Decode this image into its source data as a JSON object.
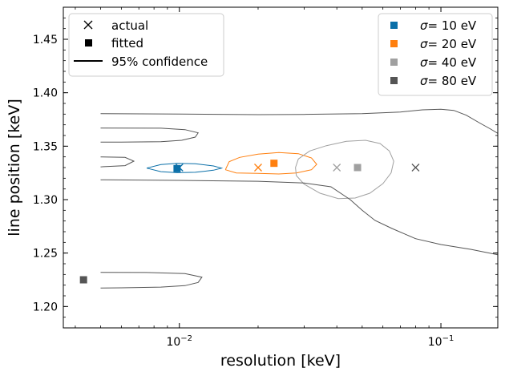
{
  "chart_data": {
    "type": "scatter",
    "xscale": "log",
    "xlim": [
      0.0036,
      0.165
    ],
    "ylim": [
      1.18,
      1.48
    ],
    "xlabel": "resolution [keV]",
    "ylabel": "line position [keV]",
    "x_ticks": [
      {
        "value": 0.01,
        "base": "10",
        "exp": "−2"
      },
      {
        "value": 0.1,
        "base": "10",
        "exp": "−1"
      }
    ],
    "y_ticks": [
      "1.20",
      "1.25",
      "1.30",
      "1.35",
      "1.40",
      "1.45"
    ],
    "legend_left": {
      "position": "top-left",
      "entries": [
        {
          "marker": "cross",
          "label": "actual"
        },
        {
          "marker": "square",
          "label": "fitted"
        },
        {
          "marker": "line",
          "label": "95% confidence"
        }
      ]
    },
    "legend_right": {
      "position": "top-right",
      "symbol": "σ",
      "entries": [
        {
          "label": "= 10 eV"
        },
        {
          "label": "= 20 eV"
        },
        {
          "label": "= 40 eV"
        },
        {
          "label": "= 80 eV"
        }
      ]
    },
    "series": [
      {
        "sigma_eV": 10,
        "color": "#0a6fa8",
        "actual": [
          0.01,
          1.33
        ],
        "fitted": [
          0.0098,
          1.329
        ],
        "contours": [
          [
            [
              0.0075,
              1.3295
            ],
            [
              0.0085,
              1.3328
            ],
            [
              0.0098,
              1.334
            ],
            [
              0.0115,
              1.3335
            ],
            [
              0.0135,
              1.3315
            ],
            [
              0.0145,
              1.3295
            ],
            [
              0.0135,
              1.3275
            ],
            [
              0.0115,
              1.3256
            ],
            [
              0.0098,
              1.3252
            ],
            [
              0.0085,
              1.3262
            ],
            [
              0.0075,
              1.3295
            ]
          ]
        ]
      },
      {
        "sigma_eV": 20,
        "color": "#ff7f0e",
        "actual": [
          0.02,
          1.33
        ],
        "fitted": [
          0.023,
          1.334
        ],
        "contours": [
          [
            [
              0.015,
              1.328
            ],
            [
              0.0155,
              1.3355
            ],
            [
              0.017,
              1.3395
            ],
            [
              0.02,
              1.3425
            ],
            [
              0.024,
              1.344
            ],
            [
              0.0285,
              1.343
            ],
            [
              0.032,
              1.339
            ],
            [
              0.0335,
              1.333
            ],
            [
              0.032,
              1.328
            ],
            [
              0.028,
              1.325
            ],
            [
              0.024,
              1.324
            ],
            [
              0.02,
              1.3245
            ],
            [
              0.0165,
              1.325
            ],
            [
              0.015,
              1.328
            ]
          ]
        ]
      },
      {
        "sigma_eV": 40,
        "color": "#a0a0a0",
        "actual": [
          0.04,
          1.33
        ],
        "fitted": [
          0.048,
          1.33
        ],
        "contours": [
          [
            [
              0.0278,
              1.33
            ],
            [
              0.0285,
              1.338
            ],
            [
              0.0315,
              1.3455
            ],
            [
              0.0365,
              1.3505
            ],
            [
              0.0435,
              1.3545
            ],
            [
              0.0515,
              1.3555
            ],
            [
              0.0585,
              1.3525
            ],
            [
              0.0635,
              1.3455
            ],
            [
              0.066,
              1.336
            ],
            [
              0.0645,
              1.325
            ],
            [
              0.06,
              1.315
            ],
            [
              0.0535,
              1.306
            ],
            [
              0.047,
              1.3015
            ],
            [
              0.0405,
              1.301
            ],
            [
              0.0345,
              1.306
            ],
            [
              0.03,
              1.3145
            ],
            [
              0.028,
              1.3225
            ],
            [
              0.0278,
              1.33
            ]
          ]
        ]
      },
      {
        "sigma_eV": 80,
        "color": "#555555",
        "actual": [
          0.08,
          1.33
        ],
        "fitted": [
          0.0043,
          1.225
        ],
        "contours": [
          [
            [
              0.005,
              1.3805
            ],
            [
              0.01,
              1.38
            ],
            [
              0.02,
              1.3795
            ],
            [
              0.03,
              1.3797
            ],
            [
              0.05,
              1.3805
            ],
            [
              0.07,
              1.382
            ],
            [
              0.085,
              1.384
            ],
            [
              0.1,
              1.3845
            ],
            [
              0.112,
              1.3835
            ],
            [
              0.125,
              1.379
            ],
            [
              0.14,
              1.372
            ],
            [
              0.155,
              1.366
            ],
            [
              0.165,
              1.362
            ]
          ],
          [
            [
              0.005,
              1.367
            ],
            [
              0.0085,
              1.3668
            ],
            [
              0.0105,
              1.3655
            ],
            [
              0.0118,
              1.3625
            ],
            [
              0.0115,
              1.3585
            ],
            [
              0.0102,
              1.3555
            ],
            [
              0.0085,
              1.3542
            ],
            [
              0.006,
              1.3538
            ],
            [
              0.005,
              1.3538
            ]
          ],
          [
            [
              0.005,
              1.34
            ],
            [
              0.0062,
              1.3395
            ],
            [
              0.0067,
              1.336
            ],
            [
              0.0062,
              1.3318
            ],
            [
              0.005,
              1.3307
            ]
          ],
          [
            [
              0.005,
              1.3185
            ],
            [
              0.01,
              1.318
            ],
            [
              0.02,
              1.3172
            ],
            [
              0.03,
              1.3155
            ],
            [
              0.038,
              1.312
            ],
            [
              0.045,
              1.3
            ],
            [
              0.05,
              1.29
            ],
            [
              0.056,
              1.2805
            ],
            [
              0.065,
              1.273
            ],
            [
              0.08,
              1.2635
            ],
            [
              0.1,
              1.258
            ],
            [
              0.13,
              1.2535
            ],
            [
              0.165,
              1.2485
            ]
          ],
          [
            [
              0.005,
              1.232
            ],
            [
              0.0075,
              1.2318
            ],
            [
              0.0105,
              1.2308
            ],
            [
              0.0122,
              1.2275
            ],
            [
              0.0118,
              1.2225
            ],
            [
              0.0105,
              1.2195
            ],
            [
              0.0085,
              1.2182
            ],
            [
              0.006,
              1.2175
            ],
            [
              0.005,
              1.2173
            ]
          ]
        ]
      }
    ]
  }
}
